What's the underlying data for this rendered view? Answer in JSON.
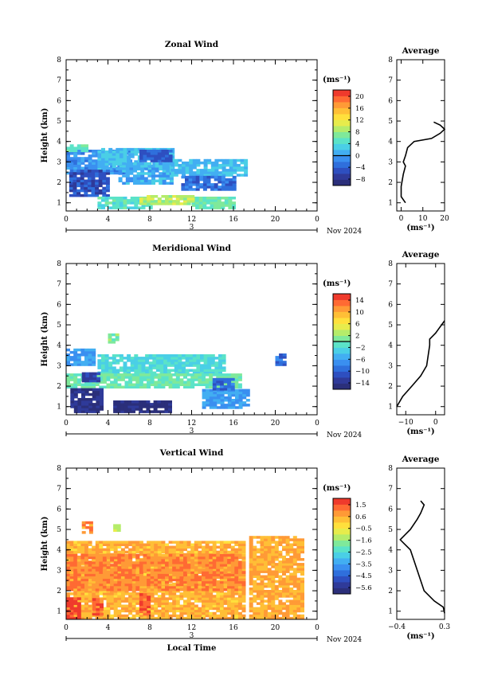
{
  "colormap": [
    "#2b2f7a",
    "#2f3a99",
    "#2e4fc0",
    "#2f6fdc",
    "#3a8ff0",
    "#42aef2",
    "#4acfe6",
    "#5be3c8",
    "#7fe99a",
    "#b5ec6a",
    "#e7ec4c",
    "#ffe03c",
    "#ffbf36",
    "#ff9a36",
    "#ff6a33",
    "#ef3a2c"
  ],
  "chart_data": [
    {
      "type": "heatmap",
      "title": "Zonal Wind",
      "xlabel": "",
      "ylabel": "Height (km)",
      "xlim": [
        0,
        24
      ],
      "ylim": [
        0.6,
        8
      ],
      "xticks": [
        "0",
        "4",
        "8",
        "12",
        "16",
        "20",
        "0"
      ],
      "yticks": [
        "1",
        "2",
        "3",
        "4",
        "5",
        "6",
        "7",
        "8"
      ],
      "date_day": "3",
      "date_label": "Nov 2024",
      "unit_label": "(ms⁻¹)",
      "colorbar_ticks": [
        "20",
        "16",
        "12",
        "8",
        "4",
        "0",
        "−4",
        "−8"
      ],
      "clim": [
        -10,
        22
      ],
      "zero_line": 0,
      "regions": [
        {
          "x": [
            0,
            6
          ],
          "y": [
            2.4,
            3.5
          ],
          "value": -1
        },
        {
          "x": [
            0,
            2
          ],
          "y": [
            3.5,
            3.8
          ],
          "value": 6
        },
        {
          "x": [
            3,
            10
          ],
          "y": [
            2.6,
            3.6
          ],
          "value": 2
        },
        {
          "x": [
            0.3,
            4
          ],
          "y": [
            1.3,
            2.6
          ],
          "value": -5
        },
        {
          "x": [
            5,
            10
          ],
          "y": [
            1.9,
            2.9
          ],
          "value": 1
        },
        {
          "x": [
            10,
            17
          ],
          "y": [
            2.3,
            3.1
          ],
          "value": 2
        },
        {
          "x": [
            11,
            16
          ],
          "y": [
            1.6,
            2.3
          ],
          "value": -3
        },
        {
          "x": [
            3,
            8
          ],
          "y": [
            0.7,
            1.2
          ],
          "value": 5
        },
        {
          "x": [
            12,
            16
          ],
          "y": [
            0.7,
            1.2
          ],
          "value": 6
        },
        {
          "x": [
            7,
            12
          ],
          "y": [
            0.9,
            1.3
          ],
          "value": 9
        },
        {
          "x": [
            7,
            10
          ],
          "y": [
            3.0,
            3.6
          ],
          "value": -4
        }
      ],
      "avg_title": "Average",
      "avg_xlim": [
        -2,
        20
      ],
      "avg_xticks": [
        "0",
        "10",
        "20"
      ],
      "avg_xlabel": "(ms⁻¹)",
      "avg_profile": [
        [
          1.0,
          2
        ],
        [
          1.3,
          0
        ],
        [
          1.8,
          0
        ],
        [
          2.4,
          1
        ],
        [
          2.8,
          2
        ],
        [
          3.0,
          1
        ],
        [
          3.3,
          2
        ],
        [
          3.7,
          3
        ],
        [
          4.0,
          6
        ],
        [
          4.15,
          14
        ],
        [
          4.4,
          18
        ],
        [
          4.6,
          20
        ],
        [
          4.8,
          18
        ],
        [
          4.95,
          15
        ]
      ]
    },
    {
      "type": "heatmap",
      "title": "Meridional Wind",
      "xlabel": "",
      "ylabel": "Height (km)",
      "xlim": [
        0,
        24
      ],
      "ylim": [
        0.6,
        8
      ],
      "xticks": [
        "0",
        "4",
        "8",
        "12",
        "16",
        "20",
        "0"
      ],
      "yticks": [
        "1",
        "2",
        "3",
        "4",
        "5",
        "6",
        "7",
        "8"
      ],
      "date_day": "3",
      "date_label": "Nov 2024",
      "unit_label": "(ms⁻¹)",
      "colorbar_ticks": [
        "14",
        "10",
        "6",
        "2",
        "−2",
        "−6",
        "−10",
        "−14"
      ],
      "clim": [
        -16,
        16
      ],
      "zero_line": 0,
      "regions": [
        {
          "x": [
            0,
            2.5
          ],
          "y": [
            3.0,
            3.8
          ],
          "value": -6
        },
        {
          "x": [
            3,
            15
          ],
          "y": [
            2.6,
            3.5
          ],
          "value": -2
        },
        {
          "x": [
            0,
            16.5
          ],
          "y": [
            1.9,
            2.6
          ],
          "value": 0
        },
        {
          "x": [
            0.4,
            3.5
          ],
          "y": [
            0.7,
            1.8
          ],
          "value": -14
        },
        {
          "x": [
            4.5,
            10
          ],
          "y": [
            0.7,
            1.3
          ],
          "value": -15
        },
        {
          "x": [
            13,
            17.5
          ],
          "y": [
            0.9,
            1.8
          ],
          "value": -6
        },
        {
          "x": [
            14,
            16
          ],
          "y": [
            1.8,
            2.4
          ],
          "value": -9
        },
        {
          "x": [
            20,
            21
          ],
          "y": [
            3.0,
            3.5
          ],
          "value": -9
        },
        {
          "x": [
            4,
            5
          ],
          "y": [
            4.1,
            4.5
          ],
          "value": 1
        },
        {
          "x": [
            1.5,
            3
          ],
          "y": [
            2.2,
            2.6
          ],
          "value": -12
        }
      ],
      "avg_title": "Average",
      "avg_xlim": [
        -13,
        3
      ],
      "avg_xticks": [
        "−10",
        "0"
      ],
      "avg_xlabel": "(ms⁻¹)",
      "avg_profile": [
        [
          1.0,
          -13
        ],
        [
          1.5,
          -11
        ],
        [
          2.0,
          -8
        ],
        [
          2.5,
          -5
        ],
        [
          3.0,
          -3
        ],
        [
          3.5,
          -2.5
        ],
        [
          4.0,
          -2
        ],
        [
          4.3,
          -2
        ],
        [
          4.6,
          0
        ],
        [
          4.8,
          1
        ],
        [
          5.0,
          2
        ],
        [
          5.2,
          3
        ]
      ]
    },
    {
      "type": "heatmap",
      "title": "Vertical Wind",
      "xlabel": "Local Time",
      "ylabel": "Height (km)",
      "xlim": [
        0,
        24
      ],
      "ylim": [
        0.6,
        8
      ],
      "xticks": [
        "0",
        "4",
        "8",
        "12",
        "16",
        "20",
        "0"
      ],
      "yticks": [
        "1",
        "2",
        "3",
        "4",
        "5",
        "6",
        "7",
        "8"
      ],
      "date_day": "3",
      "date_label": "Nov 2024",
      "unit_label": "(ms⁻¹)",
      "colorbar_ticks": [
        "1.5",
        "0.6",
        "−0.5",
        "−1.6",
        "−2.5",
        "−3.5",
        "−4.5",
        "−5.6"
      ],
      "clim": [
        -6,
        2
      ],
      "zero_line": null,
      "regions": [
        {
          "x": [
            0,
            17
          ],
          "y": [
            0.6,
            4.4
          ],
          "value": 0.4
        },
        {
          "x": [
            0,
            17
          ],
          "y": [
            2.0,
            3.8
          ],
          "value": 0.9
        },
        {
          "x": [
            17.5,
            22.5
          ],
          "y": [
            0.6,
            4.6
          ],
          "value": 0.5
        },
        {
          "x": [
            0,
            1.2
          ],
          "y": [
            0.6,
            1.6
          ],
          "value": 1.8
        },
        {
          "x": [
            2.5,
            3.5
          ],
          "y": [
            0.8,
            1.6
          ],
          "value": 1.4
        },
        {
          "x": [
            7,
            8
          ],
          "y": [
            0.8,
            1.8
          ],
          "value": 1.3
        },
        {
          "x": [
            1.5,
            2.5
          ],
          "y": [
            4.8,
            5.3
          ],
          "value": 0.8
        },
        {
          "x": [
            4.5,
            5
          ],
          "y": [
            4.9,
            5.2
          ],
          "value": -1.2
        }
      ],
      "avg_title": "Average",
      "avg_xlim": [
        -0.4,
        0.3
      ],
      "avg_xticks": [
        "−0.4",
        "0.3"
      ],
      "avg_xlabel": "(ms⁻¹)",
      "avg_profile": [
        [
          0.9,
          0.3
        ],
        [
          1.2,
          0.28
        ],
        [
          1.5,
          0.15
        ],
        [
          2.0,
          0.0
        ],
        [
          2.5,
          -0.05
        ],
        [
          3.0,
          -0.1
        ],
        [
          3.5,
          -0.15
        ],
        [
          4.0,
          -0.2
        ],
        [
          4.5,
          -0.35
        ],
        [
          5.0,
          -0.2
        ],
        [
          5.5,
          -0.1
        ],
        [
          5.8,
          -0.05
        ],
        [
          6.2,
          0.0
        ],
        [
          6.4,
          -0.05
        ]
      ]
    }
  ]
}
